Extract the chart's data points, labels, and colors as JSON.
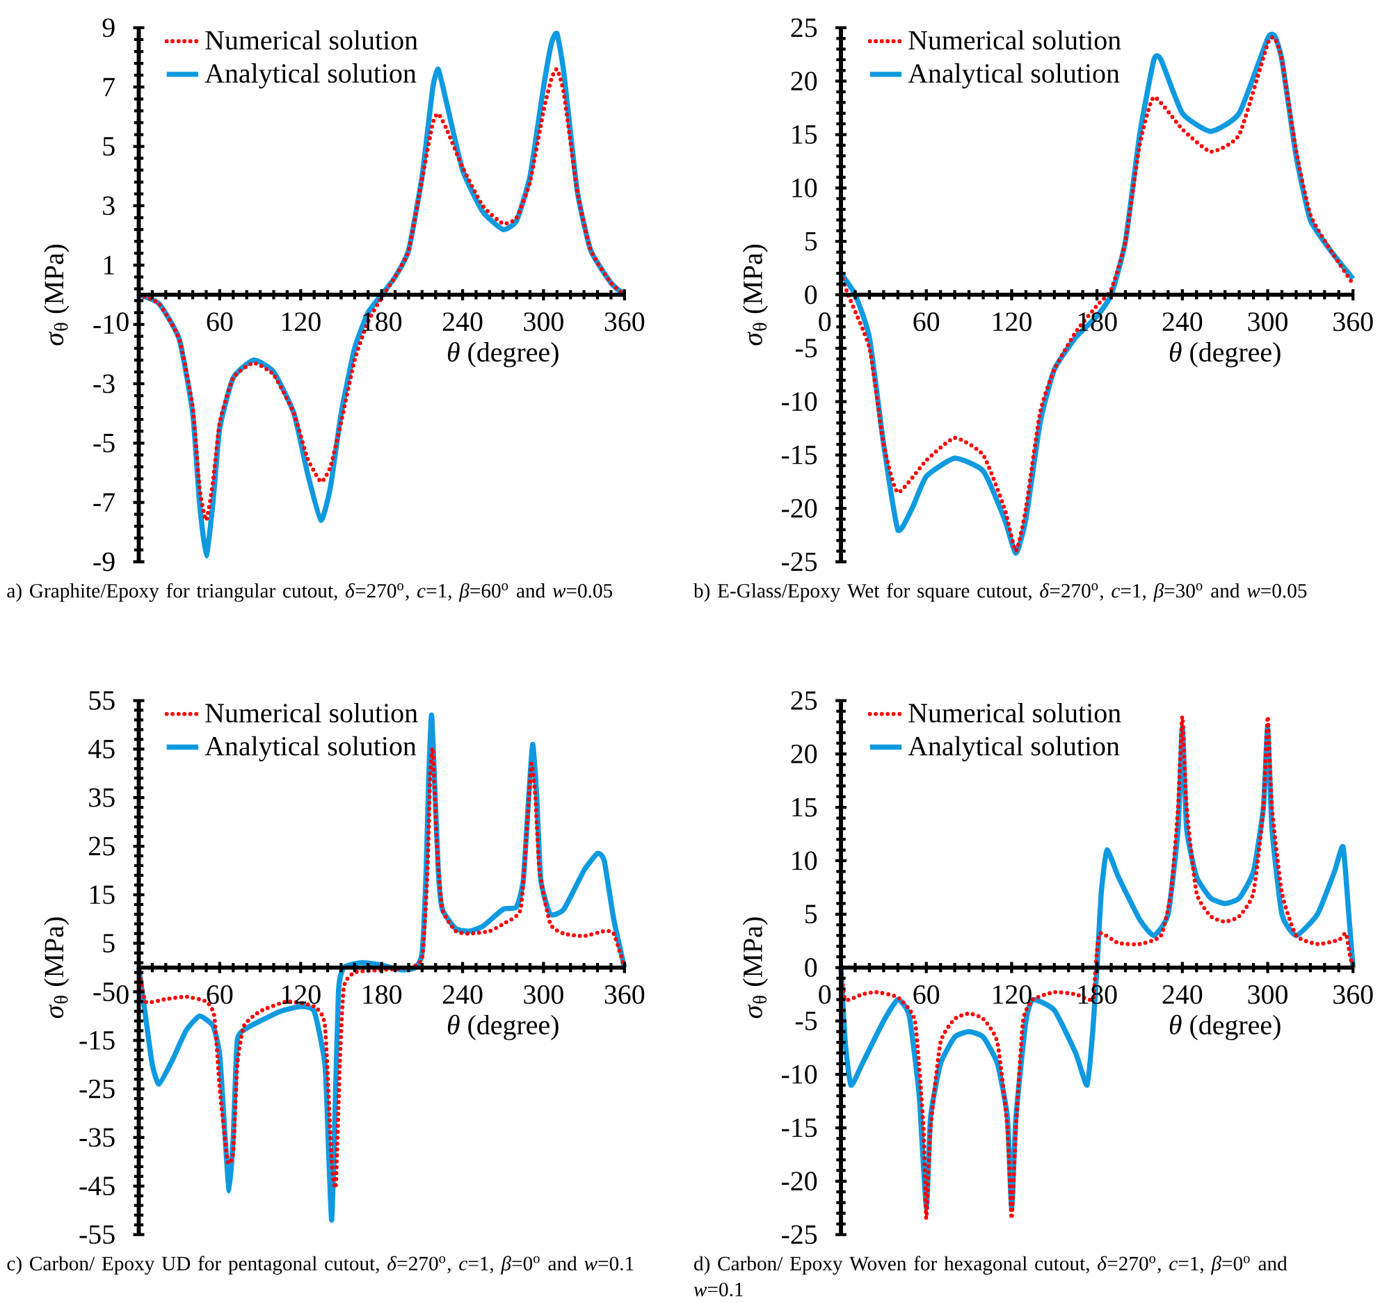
{
  "chart_data": [
    {
      "type": "line",
      "title": "a) Graphite/Epoxy for triangular cutout, *δ*=270$^{o}$, *c*=1, *β*=60$^{o}$ and *w*=0.05",
      "xlabel": "*θ* (degree)",
      "ylabel": "*σ*$_{θ}$ (MPa)",
      "xlim": [
        0,
        360
      ],
      "xticks": [
        0,
        60,
        120,
        180,
        240,
        300,
        360
      ],
      "ylim": [
        -9,
        9
      ],
      "yticks": [
        -9,
        -7,
        -5,
        -3,
        -1,
        1,
        3,
        5,
        7,
        9
      ],
      "legend": "top left",
      "grid": false,
      "series": [
        {
          "name": "Numerical solution",
          "color": "#ff0000",
          "line_style": "dotted",
          "x": [
            0,
            15,
            30,
            40,
            45,
            50,
            55,
            60,
            70,
            85,
            100,
            115,
            125,
            135,
            142,
            150,
            160,
            170,
            180,
            190,
            200,
            210,
            218,
            222,
            228,
            240,
            255,
            270,
            280,
            290,
            300,
            306,
            310,
            315,
            325,
            335,
            350,
            360
          ],
          "values": [
            0,
            -0.3,
            -1.5,
            -3.8,
            -6.5,
            -7.6,
            -6.3,
            -4.3,
            -2.8,
            -2.3,
            -2.7,
            -4,
            -5.5,
            -6.3,
            -5.8,
            -4.3,
            -2.2,
            -0.9,
            -0.1,
            0.6,
            1.5,
            3.9,
            5.8,
            6.1,
            5.6,
            4.3,
            3,
            2.4,
            2.6,
            3.8,
            6.2,
            7.3,
            7.6,
            6.8,
            3.5,
            1.5,
            0.4,
            0
          ]
        },
        {
          "name": "Analytical solution",
          "color": "#0f9ae0",
          "line_style": "solid",
          "x": [
            0,
            15,
            30,
            40,
            45,
            50,
            55,
            60,
            70,
            85,
            100,
            115,
            125,
            135,
            142,
            150,
            160,
            170,
            180,
            190,
            200,
            210,
            218,
            222,
            228,
            240,
            255,
            270,
            280,
            290,
            300,
            306,
            310,
            315,
            325,
            335,
            350,
            360
          ],
          "values": [
            0,
            -0.3,
            -1.5,
            -4,
            -7,
            -8.8,
            -7,
            -4.5,
            -2.8,
            -2.2,
            -2.6,
            -4,
            -6,
            -7.6,
            -6.5,
            -4,
            -1.8,
            -0.6,
            0,
            0.6,
            1.5,
            4,
            7,
            7.6,
            6.5,
            4.2,
            2.8,
            2.2,
            2.5,
            4,
            7,
            8.5,
            8.8,
            7.5,
            3.5,
            1.5,
            0.4,
            0
          ]
        }
      ]
    },
    {
      "type": "line",
      "title": "b) E-Glass/Epoxy Wet for square cutout, *δ*=270$^{o}$, *c*=1, *β*=30$^{o}$ and *w*=0.05",
      "xlabel": "*θ* (degree)",
      "ylabel": "*σ*$_{θ}$ (MPa)",
      "xlim": [
        0,
        360
      ],
      "xticks": [
        0,
        60,
        120,
        180,
        240,
        300,
        360
      ],
      "ylim": [
        -25,
        25
      ],
      "yticks": [
        -25,
        -20,
        -15,
        -10,
        -5,
        0,
        5,
        10,
        15,
        20,
        25
      ],
      "legend": "top left",
      "grid": false,
      "series": [
        {
          "name": "Numerical solution",
          "color": "#ff0000",
          "line_style": "dotted",
          "x": [
            0,
            5,
            20,
            30,
            40,
            60,
            80,
            100,
            115,
            123,
            130,
            140,
            150,
            165,
            180,
            190,
            200,
            210,
            220,
            240,
            260,
            280,
            300,
            305,
            310,
            320,
            330,
            345,
            360
          ],
          "values": [
            2,
            0,
            -5,
            -14,
            -18.5,
            -15.5,
            -13.4,
            -15,
            -20,
            -24,
            -20,
            -11,
            -7,
            -3.5,
            -1,
            0.5,
            5,
            14,
            18.5,
            15.5,
            13.4,
            15,
            23.5,
            24,
            22,
            13.5,
            7.5,
            4,
            1
          ]
        },
        {
          "name": "Analytical solution",
          "color": "#0f9ae0",
          "line_style": "solid",
          "x": [
            0,
            10,
            20,
            30,
            40,
            50,
            60,
            80,
            100,
            115,
            123,
            130,
            140,
            150,
            165,
            180,
            190,
            200,
            210,
            220,
            225,
            240,
            260,
            280,
            300,
            305,
            310,
            320,
            330,
            345,
            360
          ],
          "values": [
            2,
            0,
            -4,
            -14,
            -22,
            -20,
            -17,
            -15.3,
            -16.5,
            -21,
            -24.2,
            -21,
            -12,
            -7,
            -4,
            -2,
            0,
            5,
            15,
            22,
            22,
            17,
            15.3,
            17,
            24,
            24.2,
            22,
            13,
            7,
            4,
            1.5
          ]
        }
      ]
    },
    {
      "type": "line",
      "title": "c) Carbon/ Epoxy UD for pentagonal cutout, *δ*=270$^{o}$, *c*=1, *β*=0$^{o}$ and *w*=0.1",
      "xlabel": "*θ* (degree)",
      "ylabel": "*σ*$_{θ}$ (MPa)",
      "xlim": [
        0,
        360
      ],
      "xticks": [
        0,
        60,
        120,
        180,
        240,
        300,
        360
      ],
      "ylim": [
        -55,
        55
      ],
      "yticks": [
        -55,
        -45,
        -35,
        -25,
        -15,
        -5,
        5,
        15,
        25,
        35,
        45,
        55
      ],
      "legend": "top left",
      "grid": false,
      "series": [
        {
          "name": "Numerical solution",
          "color": "#ff0000",
          "line_style": "dotted",
          "x": [
            0,
            5,
            20,
            35,
            50,
            56,
            60,
            66,
            70,
            73,
            78,
            90,
            110,
            130,
            138,
            143,
            146,
            149,
            152,
            160,
            180,
            200,
            210,
            214,
            216,
            218,
            221,
            225,
            235,
            245,
            260,
            270,
            283,
            288,
            291,
            294,
            297,
            305,
            315,
            330,
            345,
            352,
            360
          ],
          "values": [
            0,
            -7,
            -6.5,
            -6,
            -7,
            -10,
            -25,
            -40,
            -38,
            -20,
            -12,
            -9,
            -7,
            -8,
            -12,
            -40,
            -45,
            -20,
            -4,
            -1,
            -0.5,
            0,
            2,
            20,
            40,
            45,
            25,
            12,
            7.5,
            7,
            7.5,
            9,
            12,
            30,
            42,
            35,
            20,
            9,
            7,
            6.5,
            7.5,
            7,
            0
          ]
        },
        {
          "name": "Analytical solution",
          "color": "#0f9ae0",
          "line_style": "solid",
          "x": [
            0,
            5,
            10,
            15,
            25,
            35,
            45,
            55,
            60,
            64,
            67,
            70,
            73,
            80,
            90,
            105,
            120,
            130,
            138,
            141,
            143,
            145,
            148,
            152,
            165,
            180,
            195,
            205,
            210,
            213,
            215,
            217,
            219,
            222,
            225,
            235,
            245,
            255,
            270,
            280,
            285,
            289,
            292,
            295,
            298,
            305,
            315,
            330,
            340,
            345,
            352,
            360
          ],
          "values": [
            0,
            -10,
            -20,
            -24,
            -19,
            -13,
            -10,
            -12,
            -18,
            -35,
            -46,
            -35,
            -15,
            -12.5,
            -11,
            -9,
            -8,
            -9,
            -20,
            -40,
            -52,
            -35,
            -5,
            0,
            1,
            0.5,
            -0.5,
            0,
            3,
            20,
            40,
            52,
            40,
            20,
            12,
            8,
            7.5,
            8.5,
            12,
            12.5,
            18,
            35,
            46,
            35,
            18,
            11,
            12,
            20,
            23.5,
            22,
            10,
            0
          ]
        }
      ]
    },
    {
      "type": "line",
      "title": "d) Carbon/ Epoxy Woven for hexagonal cutout, *δ*=270$^{o}$, *c*=1, *β*=0$^{o}$ and *w*=0.1",
      "xlabel": "*θ* (degree)",
      "ylabel": "*σ*$_{θ}$ (MPa)",
      "xlim": [
        0,
        360
      ],
      "xticks": [
        0,
        60,
        120,
        180,
        240,
        300,
        360
      ],
      "ylim": [
        -25,
        25
      ],
      "yticks": [
        -25,
        -20,
        -15,
        -10,
        -5,
        0,
        5,
        10,
        15,
        20,
        25
      ],
      "legend": "top left",
      "grid": false,
      "series": [
        {
          "name": "Numerical solution",
          "color": "#ff0000",
          "line_style": "dotted",
          "x": [
            0,
            3,
            15,
            25,
            40,
            52,
            58,
            60,
            63,
            70,
            80,
            90,
            100,
            110,
            117,
            120,
            123,
            128,
            135,
            150,
            165,
            177,
            179,
            182,
            195,
            210,
            225,
            232,
            237,
            240,
            243,
            250,
            260,
            270,
            280,
            290,
            297,
            300,
            303,
            310,
            320,
            335,
            350,
            355,
            358,
            360
          ],
          "values": [
            0,
            -3,
            -2.5,
            -2.3,
            -2.8,
            -5,
            -15,
            -23.5,
            -15,
            -7,
            -4.8,
            -4.3,
            -4.8,
            -7,
            -15,
            -23.5,
            -15,
            -5,
            -3,
            -2.3,
            -2.5,
            -3,
            0,
            3.2,
            2.3,
            2.2,
            3,
            7,
            15,
            23.5,
            15,
            7,
            4.8,
            4.3,
            4.8,
            7,
            15,
            23.5,
            15,
            7,
            3,
            2.2,
            2.6,
            3.2,
            1,
            0
          ]
        },
        {
          "name": "Analytical solution",
          "color": "#0f9ae0",
          "line_style": "solid",
          "x": [
            0,
            3,
            7,
            15,
            30,
            40,
            48,
            55,
            60,
            63,
            70,
            80,
            90,
            100,
            110,
            117,
            120,
            123,
            130,
            135,
            150,
            165,
            173,
            177,
            180,
            183,
            187,
            195,
            210,
            220,
            230,
            237,
            240,
            243,
            250,
            260,
            270,
            280,
            290,
            297,
            300,
            303,
            310,
            320,
            335,
            347,
            353,
            357,
            360
          ],
          "values": [
            0,
            -7,
            -11,
            -9,
            -5,
            -3,
            -4.5,
            -12,
            -22.5,
            -14,
            -9,
            -6.5,
            -6,
            -6.5,
            -9,
            -14,
            -22.5,
            -14,
            -5,
            -3,
            -4,
            -8,
            -11,
            -6,
            0,
            7,
            11,
            8.5,
            4.5,
            3,
            5,
            13,
            22.5,
            13,
            8.5,
            6.5,
            6,
            6.5,
            9,
            15,
            22.5,
            13,
            5,
            3,
            5,
            9,
            11.3,
            5,
            0
          ]
        }
      ]
    }
  ]
}
